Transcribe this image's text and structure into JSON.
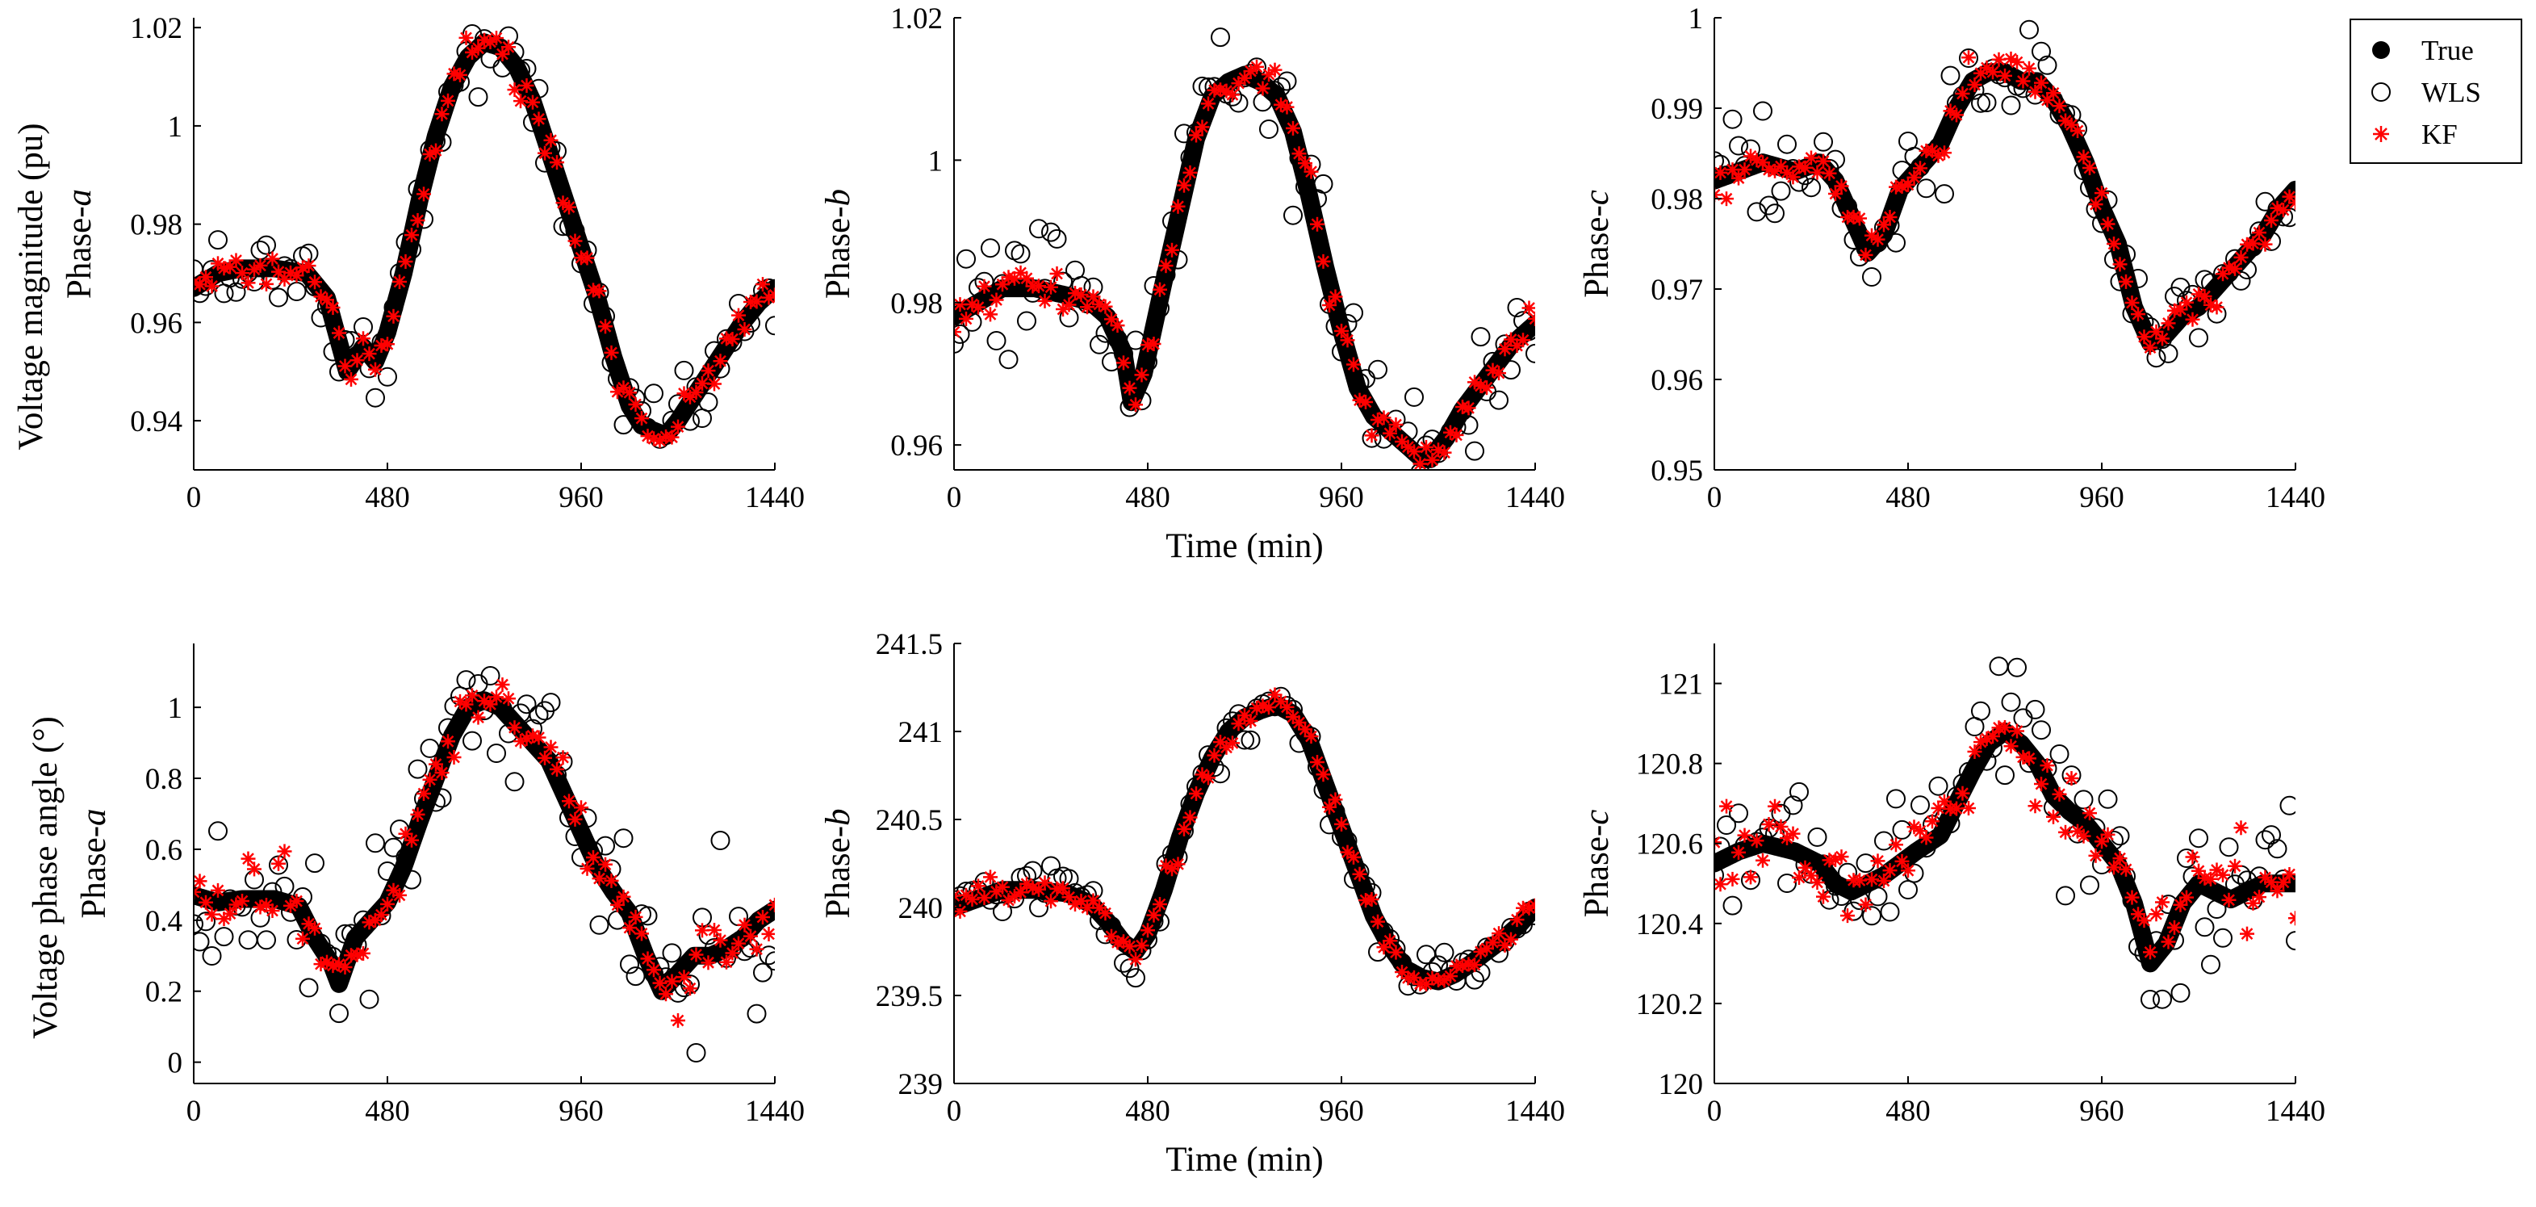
{
  "colors": {
    "true": "#000000",
    "wls": "#000000",
    "kf": "#ff0000",
    "axis": "#000000",
    "background": "#ffffff"
  },
  "legend": {
    "entries": [
      "True",
      "WLS",
      "KF"
    ],
    "placement": "top-right"
  },
  "figure": {
    "row_titles": [
      "Voltage magnitude (pu)",
      "Voltage phase angle (°)"
    ],
    "x_label": "Time (min)"
  },
  "chart_data": [
    {
      "id": "vm-a",
      "type": "scatter",
      "title": "",
      "ylabel_prefix": "Phase-",
      "ylabel_phase": "a",
      "row_title": "Voltage magnitude (pu)",
      "xlabel": "",
      "xlim": [
        0,
        1440
      ],
      "ylim": [
        0.93,
        1.022
      ],
      "xticks": [
        0,
        480,
        960,
        1440
      ],
      "xtick_labels": [
        "0",
        "480",
        "960",
        "1440"
      ],
      "yticks": [
        0.94,
        0.96,
        0.98,
        1.0,
        1.02
      ],
      "ytick_labels": [
        "0.94",
        "0.96",
        "0.98",
        "1",
        "1.02"
      ],
      "true_curve": {
        "x": [
          0,
          60,
          120,
          200,
          280,
          330,
          380,
          420,
          450,
          480,
          520,
          560,
          600,
          640,
          680,
          720,
          760,
          800,
          840,
          880,
          920,
          960,
          1000,
          1040,
          1080,
          1110,
          1140,
          1170,
          1200,
          1240,
          1280,
          1320,
          1360,
          1400,
          1440
        ],
        "y": [
          0.967,
          0.97,
          0.971,
          0.971,
          0.97,
          0.965,
          0.95,
          0.955,
          0.952,
          0.958,
          0.97,
          0.985,
          0.998,
          1.008,
          1.014,
          1.017,
          1.016,
          1.012,
          1.005,
          0.995,
          0.985,
          0.975,
          0.965,
          0.953,
          0.943,
          0.939,
          0.938,
          0.937,
          0.94,
          0.945,
          0.95,
          0.955,
          0.96,
          0.964,
          0.967
        ]
      },
      "noise": {
        "wls": 0.004,
        "kf": 0.002
      }
    },
    {
      "id": "vm-b",
      "type": "scatter",
      "title": "",
      "ylabel_prefix": "Phase-",
      "ylabel_phase": "b",
      "row_title": "",
      "xlabel": "Time (min)",
      "xlim": [
        0,
        1440
      ],
      "ylim": [
        0.9565,
        1.02
      ],
      "xticks": [
        0,
        480,
        960,
        1440
      ],
      "xtick_labels": [
        "0",
        "480",
        "960",
        "1440"
      ],
      "yticks": [
        0.96,
        0.98,
        1.0,
        1.02
      ],
      "ytick_labels": [
        "0.96",
        "0.98",
        "1",
        "1.02"
      ],
      "true_curve": {
        "x": [
          0,
          60,
          120,
          200,
          280,
          340,
          380,
          420,
          440,
          470,
          520,
          560,
          600,
          640,
          680,
          720,
          760,
          800,
          840,
          880,
          920,
          960,
          1000,
          1040,
          1080,
          1120,
          1160,
          1180,
          1220,
          1260,
          1300,
          1340,
          1380,
          1420,
          1440
        ],
        "y": [
          0.978,
          0.98,
          0.982,
          0.982,
          0.981,
          0.98,
          0.978,
          0.973,
          0.966,
          0.97,
          0.983,
          0.993,
          1.003,
          1.009,
          1.011,
          1.012,
          1.011,
          1.009,
          1.004,
          0.995,
          0.985,
          0.976,
          0.968,
          0.964,
          0.962,
          0.96,
          0.958,
          0.958,
          0.961,
          0.965,
          0.968,
          0.971,
          0.974,
          0.976,
          0.977
        ]
      },
      "noise": {
        "wls": 0.004,
        "kf": 0.0015
      }
    },
    {
      "id": "vm-c",
      "type": "scatter",
      "title": "",
      "ylabel_prefix": "Phase-",
      "ylabel_phase": "c",
      "row_title": "",
      "xlabel": "",
      "xlim": [
        0,
        1440
      ],
      "ylim": [
        0.95,
        1.0
      ],
      "xticks": [
        0,
        480,
        960,
        1440
      ],
      "xtick_labels": [
        "0",
        "480",
        "960",
        "1440"
      ],
      "yticks": [
        0.95,
        0.96,
        0.97,
        0.98,
        0.99,
        1.0
      ],
      "ytick_labels": [
        "0.95",
        "0.96",
        "0.97",
        "0.98",
        "0.99",
        "1"
      ],
      "true_curve": {
        "x": [
          0,
          60,
          120,
          200,
          260,
          300,
          340,
          380,
          420,
          460,
          500,
          560,
          600,
          640,
          680,
          720,
          760,
          800,
          840,
          880,
          920,
          960,
          1000,
          1040,
          1080,
          1120,
          1160,
          1200,
          1240,
          1280,
          1320,
          1360,
          1400,
          1440
        ],
        "y": [
          0.982,
          0.983,
          0.984,
          0.983,
          0.984,
          0.982,
          0.978,
          0.974,
          0.976,
          0.981,
          0.983,
          0.986,
          0.99,
          0.993,
          0.994,
          0.994,
          0.993,
          0.993,
          0.991,
          0.988,
          0.984,
          0.979,
          0.975,
          0.968,
          0.964,
          0.965,
          0.967,
          0.968,
          0.97,
          0.972,
          0.974,
          0.976,
          0.979,
          0.981
        ]
      },
      "noise": {
        "wls": 0.0025,
        "kf": 0.001
      }
    },
    {
      "id": "va-a",
      "type": "scatter",
      "title": "",
      "ylabel_prefix": "Phase-",
      "ylabel_phase": "a",
      "row_title": "Voltage phase angle (°)",
      "xlabel": "",
      "xlim": [
        0,
        1440
      ],
      "ylim": [
        -0.06,
        1.18
      ],
      "xticks": [
        0,
        480,
        960,
        1440
      ],
      "xtick_labels": [
        "0",
        "480",
        "960",
        "1440"
      ],
      "yticks": [
        0,
        0.2,
        0.4,
        0.6,
        0.8,
        1.0
      ],
      "ytick_labels": [
        "0",
        "0.2",
        "0.4",
        "0.6",
        "0.8",
        "1"
      ],
      "true_curve": {
        "x": [
          0,
          60,
          120,
          200,
          260,
          300,
          340,
          360,
          400,
          440,
          480,
          520,
          560,
          600,
          640,
          680,
          720,
          760,
          800,
          840,
          880,
          920,
          960,
          1000,
          1040,
          1080,
          1120,
          1160,
          1200,
          1240,
          1280,
          1320,
          1360,
          1400,
          1440
        ],
        "y": [
          0.47,
          0.45,
          0.46,
          0.46,
          0.44,
          0.35,
          0.28,
          0.22,
          0.35,
          0.4,
          0.45,
          0.55,
          0.68,
          0.8,
          0.92,
          1.0,
          1.02,
          1.0,
          0.95,
          0.9,
          0.85,
          0.75,
          0.65,
          0.55,
          0.48,
          0.42,
          0.3,
          0.2,
          0.25,
          0.3,
          0.3,
          0.32,
          0.35,
          0.4,
          0.43
        ]
      },
      "noise": {
        "wls": 0.11,
        "kf": 0.05
      }
    },
    {
      "id": "va-b",
      "type": "scatter",
      "title": "",
      "ylabel_prefix": "Phase-",
      "ylabel_phase": "b",
      "row_title": "",
      "xlabel": "Time (min)",
      "xlim": [
        0,
        1440
      ],
      "ylim": [
        239.0,
        241.5
      ],
      "xticks": [
        0,
        480,
        960,
        1440
      ],
      "xtick_labels": [
        "0",
        "480",
        "960",
        "1440"
      ],
      "yticks": [
        239,
        239.5,
        240,
        240.5,
        241,
        241.5
      ],
      "ytick_labels": [
        "239",
        "239.5",
        "240",
        "240.5",
        "241",
        "241.5"
      ],
      "true_curve": {
        "x": [
          0,
          60,
          120,
          200,
          280,
          340,
          380,
          420,
          450,
          480,
          520,
          560,
          600,
          640,
          680,
          720,
          760,
          800,
          840,
          880,
          920,
          960,
          1000,
          1040,
          1080,
          1120,
          1160,
          1200,
          1240,
          1280,
          1320,
          1360,
          1400,
          1440
        ],
        "y": [
          240.0,
          240.05,
          240.1,
          240.1,
          240.08,
          240.02,
          239.92,
          239.8,
          239.75,
          239.85,
          240.1,
          240.4,
          240.65,
          240.85,
          241.0,
          241.08,
          241.12,
          241.15,
          241.1,
          240.95,
          240.7,
          240.45,
          240.2,
          239.95,
          239.78,
          239.65,
          239.6,
          239.58,
          239.62,
          239.68,
          239.75,
          239.82,
          239.9,
          240.0
        ]
      },
      "noise": {
        "wls": 0.08,
        "kf": 0.04
      }
    },
    {
      "id": "va-c",
      "type": "scatter",
      "title": "",
      "ylabel_prefix": "Phase-",
      "ylabel_phase": "c",
      "row_title": "",
      "xlabel": "",
      "xlim": [
        0,
        1440
      ],
      "ylim": [
        120.0,
        121.1
      ],
      "xticks": [
        0,
        480,
        960,
        1440
      ],
      "xtick_labels": [
        "0",
        "480",
        "960",
        "1440"
      ],
      "yticks": [
        120,
        120.2,
        120.4,
        120.6,
        120.8,
        121
      ],
      "ytick_labels": [
        "120",
        "120.2",
        "120.4",
        "120.6",
        "120.8",
        "121"
      ],
      "true_curve": {
        "x": [
          0,
          60,
          120,
          200,
          260,
          300,
          340,
          380,
          420,
          460,
          500,
          560,
          600,
          640,
          680,
          720,
          760,
          800,
          840,
          880,
          920,
          960,
          1000,
          1040,
          1080,
          1120,
          1160,
          1200,
          1240,
          1280,
          1320,
          1360,
          1400,
          1440
        ],
        "y": [
          120.55,
          120.58,
          120.6,
          120.58,
          120.55,
          120.5,
          120.48,
          120.5,
          120.52,
          120.55,
          120.58,
          120.62,
          120.7,
          120.78,
          120.85,
          120.88,
          120.85,
          120.8,
          120.72,
          120.68,
          120.65,
          120.6,
          120.55,
          120.45,
          120.3,
          120.35,
          120.45,
          120.5,
          120.48,
          120.46,
          120.48,
          120.5,
          120.5,
          120.5
        ]
      },
      "noise": {
        "wls": 0.09,
        "kf": 0.05
      }
    }
  ]
}
